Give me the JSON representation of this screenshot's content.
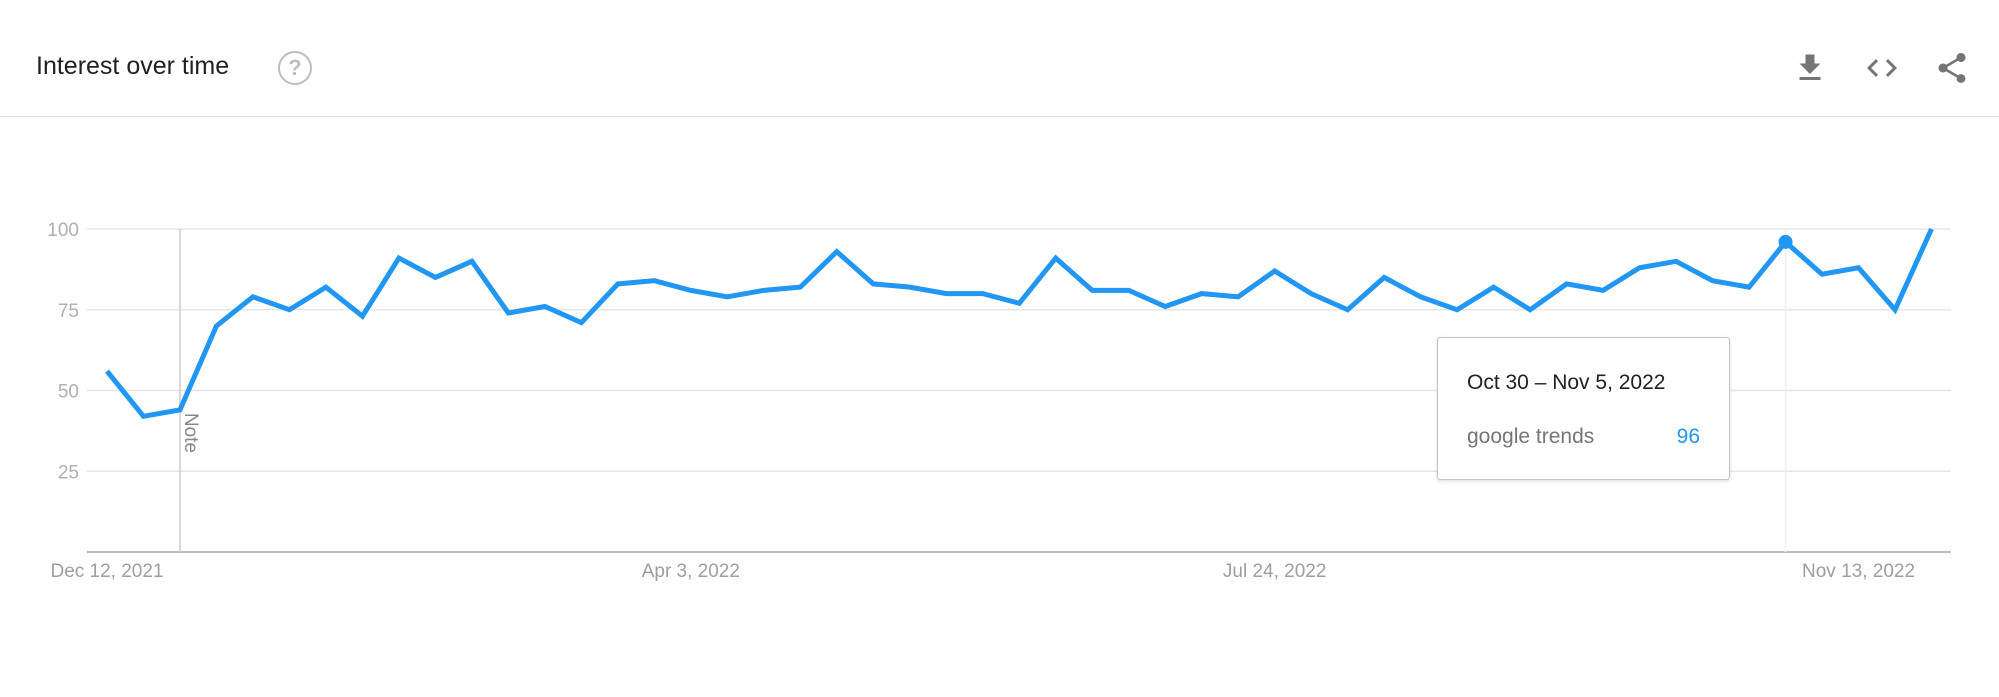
{
  "header": {
    "title": "Interest over time",
    "help_icon": "question-circle-icon",
    "actions": [
      {
        "name": "download",
        "icon": "download-icon"
      },
      {
        "name": "embed",
        "icon": "code-icon"
      },
      {
        "name": "share",
        "icon": "share-icon"
      }
    ]
  },
  "chart_data": {
    "type": "line",
    "title": "",
    "xlabel": "",
    "ylabel": "",
    "ylim": [
      0,
      100
    ],
    "y_ticks": [
      "25",
      "50",
      "75",
      "100"
    ],
    "x_tick_labels": [
      {
        "label": "Dec 12, 2021",
        "index": 0
      },
      {
        "label": "Apr 3, 2022",
        "index": 16
      },
      {
        "label": "Jul 24, 2022",
        "index": 32
      },
      {
        "label": "Nov 13, 2022",
        "index": 48
      }
    ],
    "grid": true,
    "line_color": "#2196f3",
    "x_start": "2021-12-12",
    "x_interval": "weekly",
    "series": [
      {
        "name": "google trends",
        "values": [
          56,
          42,
          44,
          70,
          79,
          75,
          82,
          73,
          91,
          85,
          90,
          74,
          76,
          71,
          83,
          84,
          81,
          79,
          81,
          82,
          93,
          83,
          82,
          80,
          80,
          77,
          91,
          81,
          81,
          76,
          80,
          79,
          87,
          80,
          75,
          85,
          79,
          75,
          82,
          75,
          83,
          81,
          88,
          90,
          84,
          82,
          96,
          86,
          88,
          75,
          100
        ]
      }
    ],
    "annotations": [
      {
        "label": "Note",
        "index": 2
      }
    ],
    "tooltip": {
      "date": "Oct 30 – Nov 5, 2022",
      "series": "google trends",
      "value": "96",
      "index": 46
    }
  }
}
